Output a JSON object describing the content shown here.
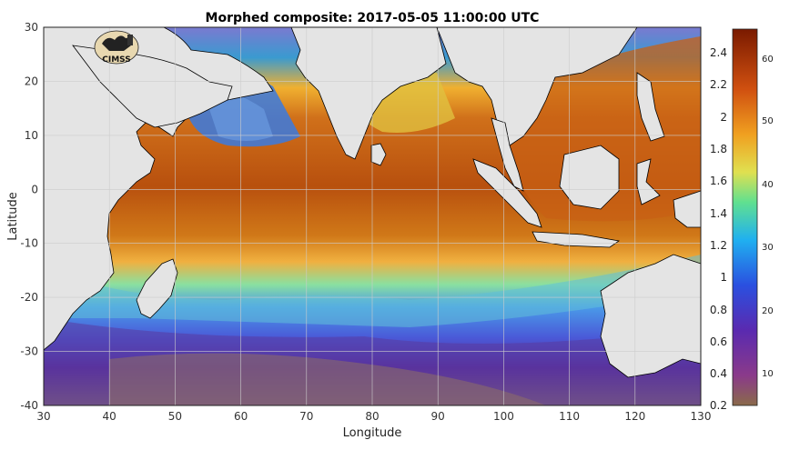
{
  "title": "Morphed composite: 2017-05-05 11:00:00 UTC",
  "xlabel": "Longitude",
  "ylabel": "Latitude",
  "logo_text": "CIMSS",
  "x_ticks": [
    "30",
    "40",
    "50",
    "60",
    "70",
    "80",
    "90",
    "100",
    "110",
    "120",
    "130"
  ],
  "y_ticks": [
    "30",
    "20",
    "10",
    "0",
    "-10",
    "-20",
    "-30",
    "-40"
  ],
  "colorbar": {
    "left_ticks": [
      "2.4",
      "2.2",
      "2",
      "1.8",
      "1.6",
      "1.4",
      "1.2",
      "1",
      "0.8",
      "0.6",
      "0.4",
      "0.2"
    ],
    "right_ticks": [
      "60",
      "50",
      "40",
      "30",
      "20",
      "10"
    ],
    "colors": [
      "#8a6a4a",
      "#7a2a8a",
      "#3a3ad8",
      "#2aa8f0",
      "#6ae08a",
      "#f0e040",
      "#f09020",
      "#c04010",
      "#7a1a00"
    ]
  },
  "map_colors": {
    "land": "#e4e4e4",
    "tropical": "#c85a14",
    "subtropical": "#f0a030",
    "transition": "#6ad0c0",
    "midlat": "#3a6ae0",
    "south": "#5a3a9a",
    "far_south": "#8a6a6a"
  }
}
